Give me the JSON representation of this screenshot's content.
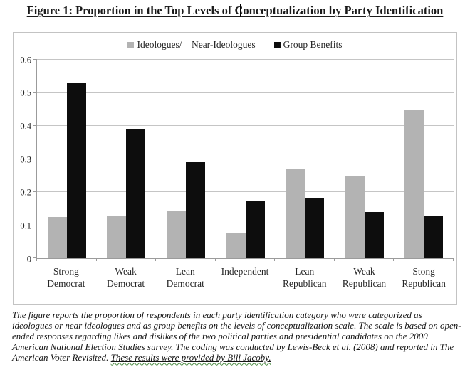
{
  "title": {
    "text": "Figure 1: Proportion in the Top Levels of Conceptualization by Party Identification"
  },
  "chart_data": {
    "type": "bar",
    "title": "Figure 1: Proportion in the Top Levels of Conceptualization by Party Identification",
    "categories": [
      "Strong\nDemocrat",
      "Weak\nDemocrat",
      "Lean\nDemocrat",
      "Independent",
      "Lean\nRepublican",
      "Weak\nRepublican",
      "Stong\nRepublican"
    ],
    "series": [
      {
        "id": "ideologues-near-ideologues",
        "name": "Ideologues/    Near-Ideologues",
        "color": "#b3b3b3",
        "values": [
          0.125,
          0.13,
          0.145,
          0.078,
          0.27,
          0.25,
          0.45
        ]
      },
      {
        "id": "group-benefits",
        "name": "Group Benefits",
        "color": "#0d0d0d",
        "values": [
          0.53,
          0.39,
          0.29,
          0.175,
          0.18,
          0.14,
          0.13
        ]
      }
    ],
    "ylim": [
      0,
      0.6
    ],
    "yticks": [
      0,
      0.1,
      0.2,
      0.3,
      0.4,
      0.5,
      0.6
    ],
    "ytick_labels": [
      "0",
      "0.1",
      "0.2",
      "0.3",
      "0.4",
      "0.5",
      "0.6"
    ],
    "grid": true,
    "legend_position": "top-center"
  },
  "caption": {
    "text": "The figure reports the proportion of respondents in each party identification category who were categorized as ideologues or near ideologues and as group benefits on the levels of conceptualization scale. The scale is based on open-ended responses regarding likes and dislikes of the two political parties and presidential candidates on the 2000 American National Election Studies survey. The coding was conducted by Lewis-Beck et al. (2008) and reported in The American Voter Revisited. ",
    "underlined_text": "These results were provided by Bill Jacoby."
  }
}
